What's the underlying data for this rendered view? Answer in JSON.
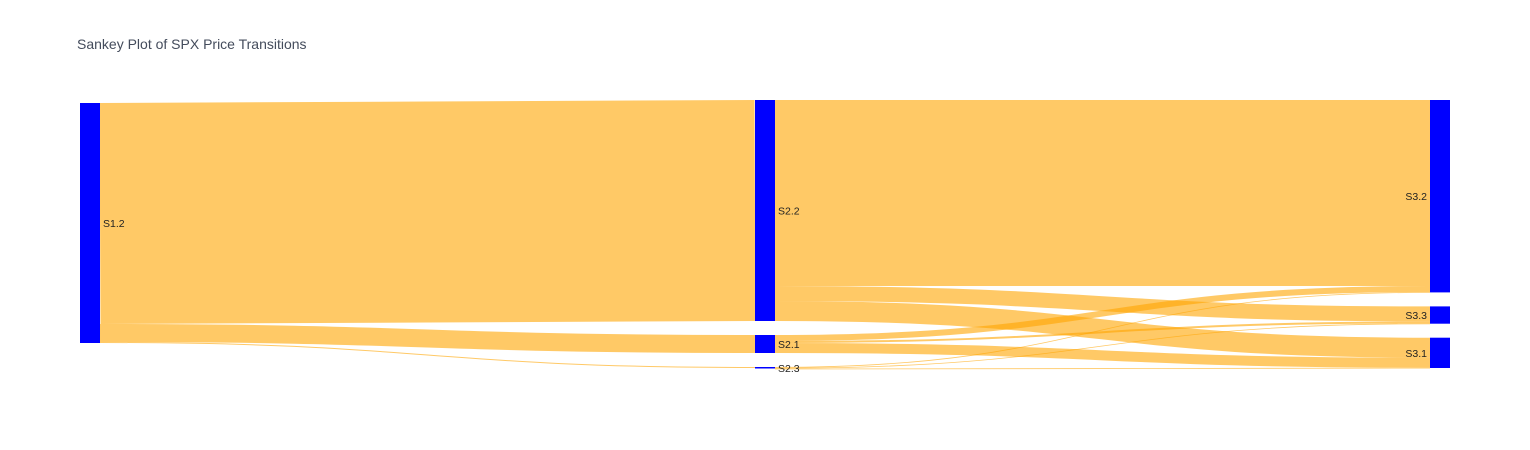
{
  "chart_data": {
    "type": "sankey",
    "title": "Sankey Plot of SPX Price Transitions",
    "node_color": "#0000ff",
    "link_color": "#ffa500",
    "link_opacity": 0.6,
    "nodes": [
      {
        "id": "S1.2",
        "label": "S1.2",
        "column": 0
      },
      {
        "id": "S2.2",
        "label": "S2.2",
        "column": 1
      },
      {
        "id": "S2.1",
        "label": "S2.1",
        "column": 1
      },
      {
        "id": "S2.3",
        "label": "S2.3",
        "column": 1
      },
      {
        "id": "S3.2",
        "label": "S3.2",
        "column": 2
      },
      {
        "id": "S3.3",
        "label": "S3.3",
        "column": 2
      },
      {
        "id": "S3.1",
        "label": "S3.1",
        "column": 2
      }
    ],
    "links": [
      {
        "source": "S1.2",
        "target": "S2.2",
        "value": 221
      },
      {
        "source": "S1.2",
        "target": "S2.1",
        "value": 18
      },
      {
        "source": "S1.2",
        "target": "S2.3",
        "value": 1
      },
      {
        "source": "S2.2",
        "target": "S3.2",
        "value": 186
      },
      {
        "source": "S2.2",
        "target": "S3.3",
        "value": 15
      },
      {
        "source": "S2.2",
        "target": "S3.1",
        "value": 20
      },
      {
        "source": "S2.1",
        "target": "S3.2",
        "value": 6
      },
      {
        "source": "S2.1",
        "target": "S3.3",
        "value": 2
      },
      {
        "source": "S2.1",
        "target": "S3.1",
        "value": 10
      },
      {
        "source": "S2.3",
        "target": "S3.2",
        "value": 0.4
      },
      {
        "source": "S2.3",
        "target": "S3.3",
        "value": 0.3
      },
      {
        "source": "S2.3",
        "target": "S3.1",
        "value": 0.3
      }
    ]
  }
}
